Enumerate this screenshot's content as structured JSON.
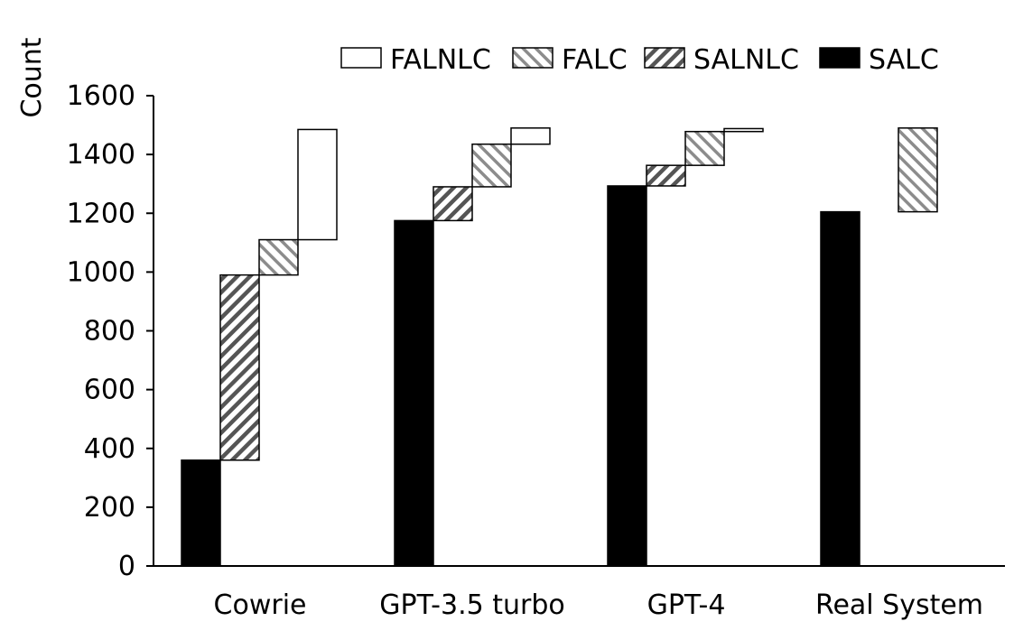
{
  "chart_data": {
    "type": "bar",
    "subtype": "waterfall",
    "title": "",
    "xlabel": "",
    "ylabel": "Count",
    "ylim": [
      0,
      1600
    ],
    "yticks": [
      0,
      200,
      400,
      600,
      800,
      1000,
      1200,
      1400,
      1600
    ],
    "grid": false,
    "legend_position": "top-right",
    "categories": [
      "Cowrie",
      "GPT-3.5 turbo",
      "GPT-4",
      "Real System"
    ],
    "series": [
      {
        "name": "SALC",
        "pattern": "solid-black",
        "values": [
          360,
          1175,
          1293,
          1205
        ]
      },
      {
        "name": "SALNLC",
        "pattern": "dense-diagonal-hatch",
        "values": [
          630,
          115,
          70,
          0
        ]
      },
      {
        "name": "FALC",
        "pattern": "sparse-diagonal-hatch",
        "values": [
          120,
          145,
          115,
          285
        ]
      },
      {
        "name": "FALNLC",
        "pattern": "white",
        "values": [
          375,
          55,
          10,
          0
        ]
      }
    ],
    "legend": [
      "FALNLC",
      "FALC",
      "SALNLC",
      "SALC"
    ]
  }
}
